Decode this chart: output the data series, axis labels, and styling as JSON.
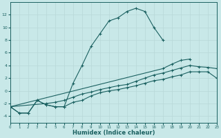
{
  "xlabel": "Humidex (Indice chaleur)",
  "background_color": "#c8e8e8",
  "grid_color": "#b8d8d8",
  "line_color": "#1a6060",
  "ylim": [
    -5,
    14
  ],
  "xlim": [
    0,
    23
  ],
  "yticks": [
    -4,
    -2,
    0,
    2,
    4,
    6,
    8,
    10,
    12
  ],
  "xticks": [
    0,
    1,
    2,
    3,
    4,
    5,
    6,
    7,
    8,
    9,
    10,
    11,
    12,
    13,
    14,
    15,
    16,
    17,
    18,
    19,
    20,
    21,
    22,
    23
  ],
  "line1_x": [
    0,
    1,
    2,
    3,
    4,
    5,
    6,
    7,
    8,
    9,
    10,
    11,
    12,
    13,
    14,
    15,
    16,
    17
  ],
  "line1_y": [
    -2.5,
    -3.5,
    -3.5,
    -1.5,
    -2.2,
    -2.5,
    -2.5,
    1.2,
    4.0,
    7.0,
    9.0,
    11.0,
    11.5,
    12.5,
    13.0,
    12.5,
    10.0,
    8.0
  ],
  "line2_x": [
    0,
    1,
    2,
    3,
    4,
    5,
    6,
    7,
    8,
    9,
    10,
    11,
    12,
    13,
    14,
    15,
    16,
    17,
    18,
    19,
    20,
    21,
    22,
    23
  ],
  "line2_y": [
    -2.5,
    -3.5,
    -3.5,
    -1.5,
    -2.2,
    -2.5,
    -2.5,
    -1.8,
    -1.5,
    -0.8,
    -0.3,
    0.0,
    0.2,
    0.5,
    0.8,
    1.2,
    1.6,
    1.8,
    2.2,
    2.5,
    3.0,
    3.0,
    3.0,
    2.0
  ],
  "line3_x": [
    0,
    4,
    5,
    6,
    7,
    8,
    9,
    10,
    11,
    12,
    13,
    14,
    15,
    16,
    17,
    18,
    19,
    20,
    21,
    22,
    23
  ],
  "line3_y": [
    -2.5,
    -2.0,
    -1.8,
    -1.5,
    -1.0,
    -0.5,
    -0.2,
    0.2,
    0.5,
    0.8,
    1.0,
    1.5,
    2.0,
    2.5,
    2.8,
    3.2,
    3.6,
    4.0,
    3.8,
    3.7,
    3.5
  ],
  "line4_x": [
    0,
    17,
    18,
    19,
    20
  ],
  "line4_y": [
    -2.5,
    3.5,
    4.2,
    4.8,
    5.0
  ]
}
